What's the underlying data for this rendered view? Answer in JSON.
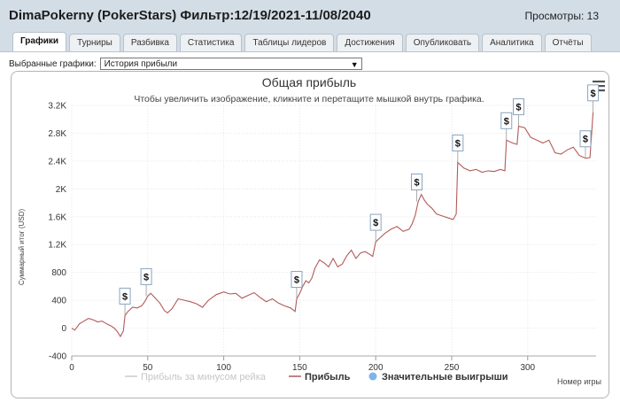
{
  "window": {
    "title": "DimaPokerny (PokerStars) Фильтр:12/19/2021-11/08/2040",
    "views_label": "Просмотры: 13"
  },
  "tabs": [
    {
      "label": "Графики",
      "active": true
    },
    {
      "label": "Турниры"
    },
    {
      "label": "Разбивка"
    },
    {
      "label": "Статистика"
    },
    {
      "label": "Таблицы лидеров"
    },
    {
      "label": "Достижения"
    },
    {
      "label": "Опубликовать"
    },
    {
      "label": "Аналитика"
    },
    {
      "label": "Отчёты"
    }
  ],
  "filter": {
    "label": "Выбранные графики:",
    "selected": "История прибыли"
  },
  "icons": {
    "menu": "hamburger-menu-icon",
    "marker": "dollar-marker-icon"
  },
  "colors": {
    "profit_line": "#b35a5a",
    "rake_line": "#cccccc",
    "big_wins": "#7cb5ec"
  },
  "chart_data": {
    "type": "line",
    "title": "Общая прибыль",
    "subtitle": "Чтобы увеличить изображение, кликните и перетащите мышкой внутрь графика.",
    "xlabel": "Номер игры",
    "ylabel": "Суммарный итог (USD)",
    "xlim": [
      0,
      345
    ],
    "ylim": [
      -400,
      3200
    ],
    "x_ticks": [
      0,
      50,
      100,
      150,
      200,
      250,
      300
    ],
    "y_ticks": [
      -400,
      0,
      400,
      800,
      1200,
      1600,
      2000,
      2400,
      2800,
      3200
    ],
    "y_tick_labels": [
      "-400",
      "0",
      "400",
      "800",
      "1.2K",
      "1.6K",
      "2K",
      "2.4K",
      "2.8K",
      "3.2K"
    ],
    "grid": true,
    "legend_position": "bottom",
    "legend": [
      "Прибыль за минусом рейка",
      "Прибыль",
      "Значительные выигрыши"
    ],
    "series": [
      {
        "name": "Прибыль",
        "points": [
          [
            0,
            0
          ],
          [
            2,
            -30
          ],
          [
            5,
            60
          ],
          [
            8,
            100
          ],
          [
            11,
            140
          ],
          [
            14,
            120
          ],
          [
            17,
            90
          ],
          [
            20,
            100
          ],
          [
            23,
            60
          ],
          [
            26,
            30
          ],
          [
            28,
            0
          ],
          [
            30,
            -50
          ],
          [
            32,
            -120
          ],
          [
            34,
            -40
          ],
          [
            35,
            180
          ],
          [
            37,
            240
          ],
          [
            40,
            300
          ],
          [
            43,
            290
          ],
          [
            46,
            320
          ],
          [
            48,
            380
          ],
          [
            50,
            460
          ],
          [
            52,
            500
          ],
          [
            55,
            430
          ],
          [
            58,
            360
          ],
          [
            61,
            250
          ],
          [
            63,
            220
          ],
          [
            66,
            280
          ],
          [
            70,
            420
          ],
          [
            74,
            400
          ],
          [
            78,
            380
          ],
          [
            82,
            350
          ],
          [
            86,
            300
          ],
          [
            90,
            400
          ],
          [
            95,
            480
          ],
          [
            100,
            520
          ],
          [
            104,
            490
          ],
          [
            108,
            500
          ],
          [
            112,
            430
          ],
          [
            116,
            470
          ],
          [
            120,
            510
          ],
          [
            124,
            440
          ],
          [
            128,
            380
          ],
          [
            132,
            420
          ],
          [
            136,
            360
          ],
          [
            140,
            320
          ],
          [
            144,
            290
          ],
          [
            147,
            240
          ],
          [
            148,
            420
          ],
          [
            150,
            500
          ],
          [
            152,
            600
          ],
          [
            154,
            680
          ],
          [
            156,
            650
          ],
          [
            158,
            720
          ],
          [
            160,
            860
          ],
          [
            163,
            980
          ],
          [
            166,
            940
          ],
          [
            169,
            880
          ],
          [
            172,
            1000
          ],
          [
            175,
            880
          ],
          [
            178,
            920
          ],
          [
            181,
            1040
          ],
          [
            184,
            1120
          ],
          [
            187,
            1000
          ],
          [
            190,
            1080
          ],
          [
            193,
            1100
          ],
          [
            196,
            1060
          ],
          [
            198,
            1030
          ],
          [
            200,
            1240
          ],
          [
            203,
            1300
          ],
          [
            206,
            1360
          ],
          [
            210,
            1420
          ],
          [
            214,
            1460
          ],
          [
            218,
            1390
          ],
          [
            222,
            1420
          ],
          [
            224,
            1500
          ],
          [
            226,
            1620
          ],
          [
            228,
            1820
          ],
          [
            230,
            1920
          ],
          [
            232,
            1840
          ],
          [
            234,
            1780
          ],
          [
            237,
            1720
          ],
          [
            240,
            1640
          ],
          [
            244,
            1610
          ],
          [
            248,
            1580
          ],
          [
            251,
            1560
          ],
          [
            253,
            1640
          ],
          [
            254,
            2380
          ],
          [
            258,
            2300
          ],
          [
            262,
            2260
          ],
          [
            266,
            2280
          ],
          [
            270,
            2240
          ],
          [
            274,
            2260
          ],
          [
            278,
            2250
          ],
          [
            282,
            2280
          ],
          [
            285,
            2260
          ],
          [
            286,
            2700
          ],
          [
            290,
            2660
          ],
          [
            293,
            2640
          ],
          [
            294,
            2900
          ],
          [
            298,
            2880
          ],
          [
            302,
            2740
          ],
          [
            306,
            2700
          ],
          [
            310,
            2660
          ],
          [
            314,
            2700
          ],
          [
            318,
            2520
          ],
          [
            322,
            2500
          ],
          [
            326,
            2560
          ],
          [
            330,
            2600
          ],
          [
            334,
            2480
          ],
          [
            338,
            2440
          ],
          [
            341,
            2450
          ],
          [
            343,
            3100
          ]
        ]
      }
    ],
    "big_wins": [
      [
        35,
        180
      ],
      [
        49,
        460
      ],
      [
        148,
        420
      ],
      [
        200,
        1240
      ],
      [
        227,
        1820
      ],
      [
        254,
        2380
      ],
      [
        286,
        2700
      ],
      [
        294,
        2900
      ],
      [
        338,
        2440
      ],
      [
        343,
        3100
      ]
    ]
  }
}
